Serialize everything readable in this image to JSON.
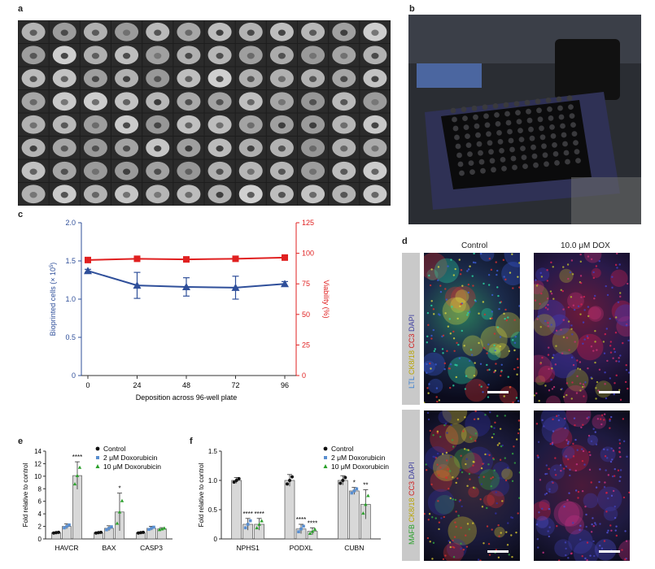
{
  "panels": {
    "a": "a",
    "b": "b",
    "c": "c",
    "d": "d",
    "e": "e",
    "f": "f"
  },
  "chart_c": {
    "type": "line",
    "x": [
      0,
      24,
      48,
      72,
      96
    ],
    "xlabel": "Deposition across 96-well plate",
    "ylabel_left_main": "Bioprinted cells (× 10",
    "ylabel_left_exp": "5",
    "ylabel_left_end": ")",
    "ylabel_right": "Viability (%)",
    "ylim_left": [
      0,
      2.0
    ],
    "ylim_right": [
      0,
      125
    ],
    "yticks_left": [
      "0",
      "0.5",
      "1.0",
      "1.5",
      "2.0"
    ],
    "yticks_right": [
      "0",
      "25",
      "50",
      "75",
      "100",
      "125"
    ],
    "xticks": [
      "0",
      "24",
      "48",
      "72",
      "96"
    ],
    "cells": [
      1.37,
      1.18,
      1.16,
      1.15,
      1.2
    ],
    "cells_err": [
      0.02,
      0.17,
      0.12,
      0.15,
      0.03
    ],
    "viability": [
      94.5,
      95.5,
      95,
      95.5,
      96.5
    ],
    "colors": {
      "cells": "#2f4f9a",
      "viability": "#e02020"
    }
  },
  "chart_e": {
    "type": "bar",
    "ylabel": "Fold relative to control",
    "ylim": [
      0,
      14
    ],
    "yticks": [
      "0",
      "2",
      "4",
      "6",
      "8",
      "10",
      "12",
      "14"
    ],
    "categories": [
      "HAVCR",
      "BAX",
      "CASP3"
    ],
    "legend": [
      "Control",
      "2 μM Doxorubicin",
      "10 μM Doxorubicin"
    ],
    "series": [
      {
        "values": [
          1.0,
          1.0,
          1.0
        ],
        "err": [
          0.1,
          0.1,
          0.1
        ]
      },
      {
        "values": [
          2.0,
          1.7,
          1.7
        ],
        "err": [
          0.4,
          0.4,
          0.3
        ]
      },
      {
        "values": [
          10.1,
          4.3,
          1.6
        ],
        "err": [
          2.2,
          3.0,
          0.2
        ]
      }
    ],
    "stars": [
      [
        "",
        "",
        ""
      ],
      [
        "",
        "",
        ""
      ],
      [
        "****",
        "*",
        ""
      ]
    ]
  },
  "chart_f": {
    "type": "bar",
    "ylabel": "Fold relative to control",
    "ylim": [
      0,
      1.5
    ],
    "yticks": [
      "0",
      "0.5",
      "1.0",
      "1.5"
    ],
    "categories": [
      "NPHS1",
      "PODXL",
      "CUBN"
    ],
    "legend": [
      "Control",
      "2 μM Doxorubicin",
      "10 μM Doxorubicin"
    ],
    "series": [
      {
        "values": [
          1.0,
          1.0,
          1.0
        ],
        "err": [
          0.05,
          0.1,
          0.08
        ]
      },
      {
        "values": [
          0.25,
          0.17,
          0.82
        ],
        "err": [
          0.1,
          0.08,
          0.06
        ]
      },
      {
        "values": [
          0.25,
          0.13,
          0.59
        ],
        "err": [
          0.1,
          0.06,
          0.25
        ]
      }
    ],
    "stars": [
      [
        "",
        "",
        ""
      ],
      [
        "****",
        "****",
        "*"
      ],
      [
        "****",
        "****",
        "**"
      ]
    ]
  },
  "panel_d": {
    "col_control": "Control",
    "col_dox": "10.0 μM DOX",
    "row1_label": [
      "LTL ",
      "CK8/18 ",
      "CC3 ",
      "DAPI"
    ],
    "row2_label": [
      "MAFB ",
      "CK8/18 ",
      "CC3 ",
      "DAPI"
    ],
    "label_colors": [
      "#3a7fd0",
      "#c8b400",
      "#d02020",
      "#4040a0"
    ],
    "row2_colors": [
      "#2aa02a",
      "#c8b400",
      "#d02020",
      "#4040a0"
    ]
  }
}
